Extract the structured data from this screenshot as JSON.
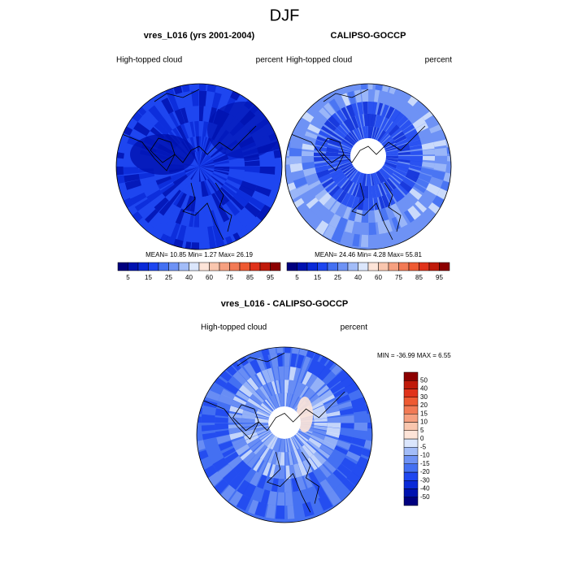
{
  "title": "DJF",
  "panels": [
    {
      "title": "vres_L016 (yrs 2001-2004)",
      "left_label": "High-topped cloud",
      "right_label": "percent",
      "stats": "MEAN=  10.85  Min=   1.27  Max=  26.19",
      "colorbar": {
        "labels": [
          5,
          15,
          25,
          40,
          60,
          75,
          85,
          95
        ]
      }
    },
    {
      "title": "CALIPSO-GOCCP",
      "left_label": "High-topped cloud",
      "right_label": "percent",
      "stats": "MEAN=  24.46  Min=   4.28  Max=  55.81",
      "colorbar": {
        "labels": [
          5,
          15,
          25,
          40,
          60,
          75,
          85,
          95
        ]
      }
    },
    {
      "title": "vres_L016 - CALIPSO-GOCCP",
      "left_label": "High-topped cloud",
      "right_label": "percent",
      "stats": "MIN = -36.99 MAX =   6.55",
      "colorbar": {
        "labels": [
          50,
          40,
          30,
          20,
          15,
          10,
          5,
          0,
          -5,
          -10,
          -15,
          -20,
          -30,
          -40,
          -50
        ]
      }
    }
  ],
  "colorbar_colors": [
    "#00007f",
    "#0012b0",
    "#0a2ad8",
    "#1e46f0",
    "#4470f2",
    "#6e92f5",
    "#a2bcf8",
    "#dbe6fc",
    "#fde4d8",
    "#f9c6ae",
    "#f6a080",
    "#f27a55",
    "#ee5a32",
    "#e0321a",
    "#c01a0a",
    "#8c0000"
  ]
}
